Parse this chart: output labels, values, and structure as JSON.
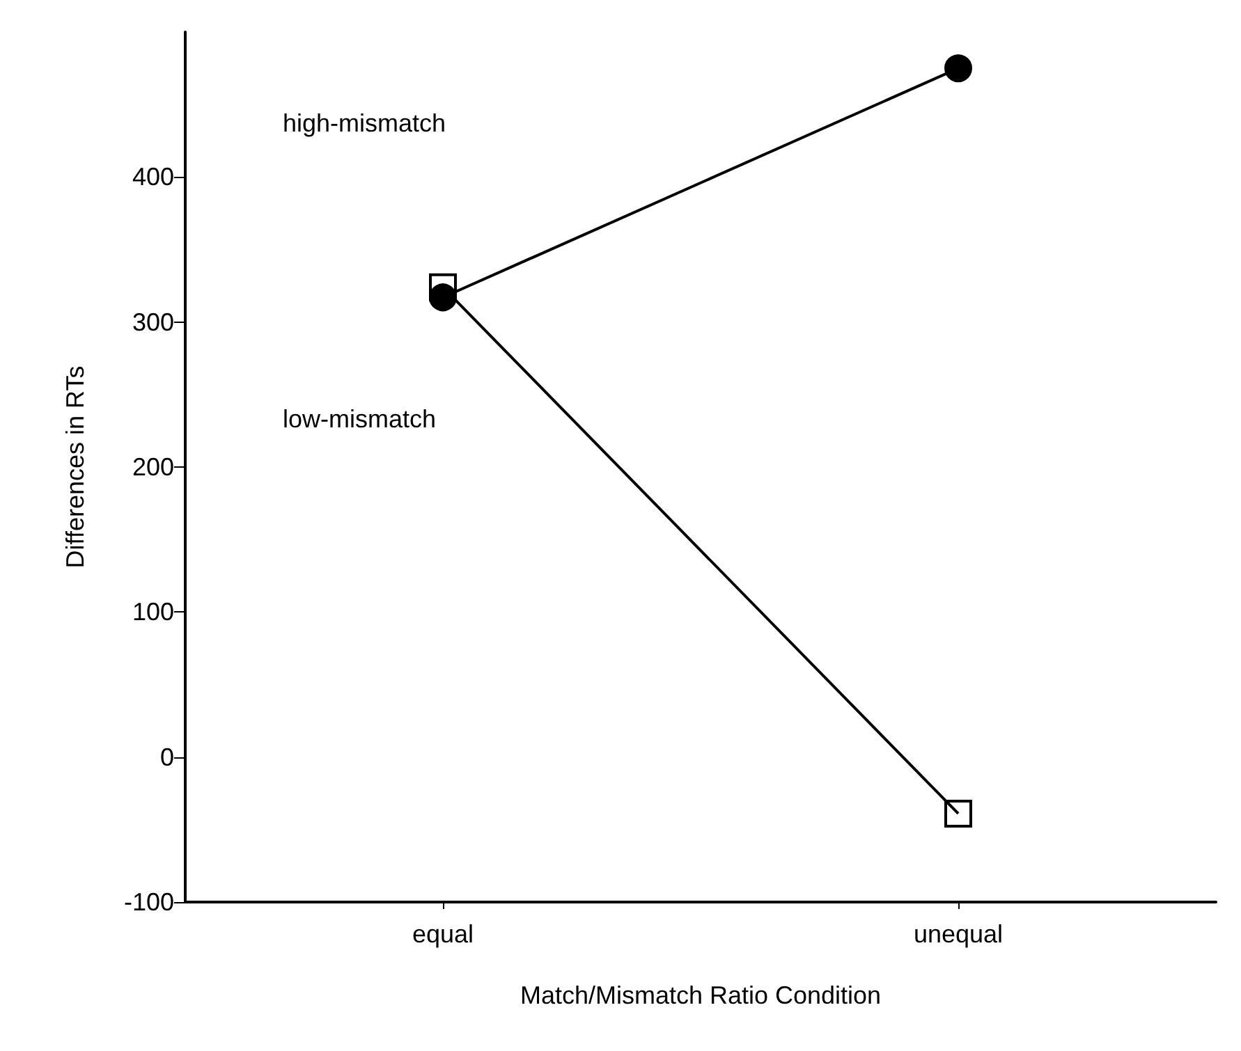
{
  "chart_data": {
    "type": "line",
    "xlabel": "Match/Mismatch Ratio Condition",
    "ylabel": "Differences in RTs",
    "categories": [
      "equal",
      "unequal"
    ],
    "series": [
      {
        "color": "#000000",
        "marker": "circle",
        "values": [
          317,
          475
        ]
      },
      {
        "color": "#000000",
        "marker": "square",
        "values": [
          324,
          -39
        ]
      }
    ],
    "annotations": [
      "high-mismatch",
      "low-mismatch"
    ],
    "ylim": [
      -100,
      500
    ],
    "yticks": [
      -100,
      0,
      100,
      200,
      300,
      400
    ],
    "grid": false,
    "line_style": "solid"
  }
}
